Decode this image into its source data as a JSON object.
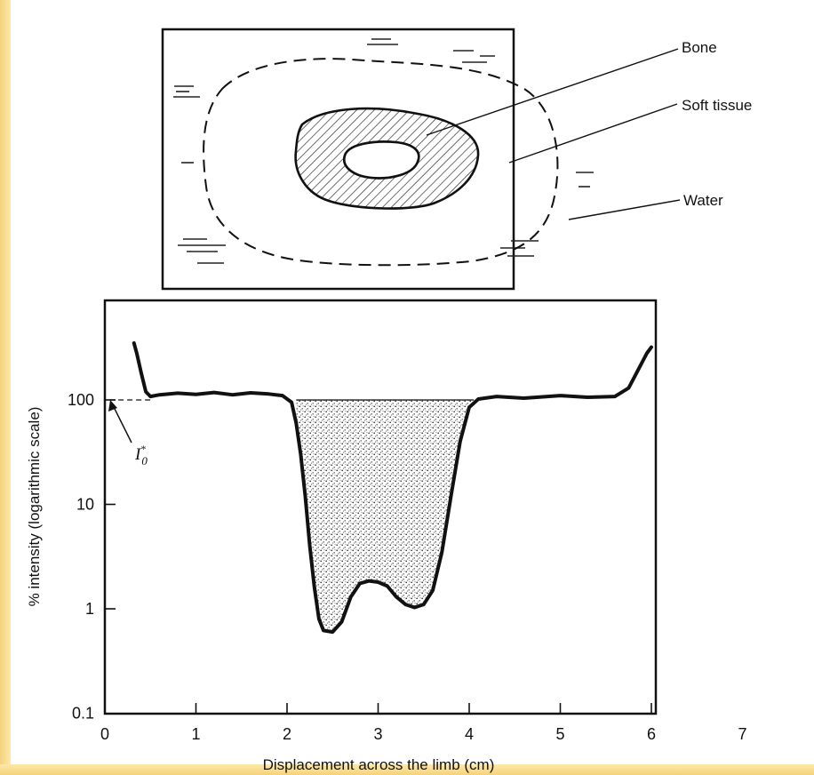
{
  "labels": {
    "bone": "Bone",
    "soft_tissue": "Soft tissue",
    "water": "Water",
    "i0": "I",
    "i0_sub": "0",
    "i0_star": "*"
  },
  "chart_data": {
    "type": "line",
    "xlabel": "Displacement across the limb (cm)",
    "ylabel": "% intensity (logarithmic scale)",
    "xlim": [
      0,
      7
    ],
    "ylim": [
      0.1,
      1000
    ],
    "log_y": true,
    "x_ticks": [
      "0",
      "1",
      "2",
      "3",
      "4",
      "5",
      "6",
      "7"
    ],
    "y_ticks": [
      "0.1",
      "1",
      "10",
      "100"
    ],
    "reference_level": 100,
    "series": [
      {
        "x": [
          0.32,
          0.35,
          0.4,
          0.45,
          0.5,
          0.6,
          0.8,
          1.0,
          1.2,
          1.4,
          1.6,
          1.8,
          1.95,
          2.05,
          2.1,
          2.15,
          2.2,
          2.25,
          2.3,
          2.35,
          2.4,
          2.5,
          2.6,
          2.7,
          2.8,
          2.9,
          3.0,
          3.1,
          3.2,
          3.3,
          3.4,
          3.5,
          3.6,
          3.7,
          3.8,
          3.9,
          4.0,
          4.1,
          4.3,
          4.6,
          5.0,
          5.3,
          5.6,
          5.75,
          5.85,
          5.95,
          6.0
        ],
        "y": [
          350,
          280,
          180,
          120,
          108,
          112,
          116,
          113,
          118,
          112,
          117,
          114,
          110,
          95,
          60,
          30,
          12,
          4,
          1.6,
          0.8,
          0.62,
          0.6,
          0.75,
          1.3,
          1.75,
          1.85,
          1.8,
          1.65,
          1.3,
          1.1,
          1.03,
          1.1,
          1.5,
          3.5,
          12,
          40,
          85,
          102,
          108,
          104,
          110,
          106,
          108,
          130,
          190,
          280,
          320
        ]
      }
    ],
    "shaded_region": {
      "x_from": 2.1,
      "x_to": 4.05,
      "top": 100
    }
  }
}
